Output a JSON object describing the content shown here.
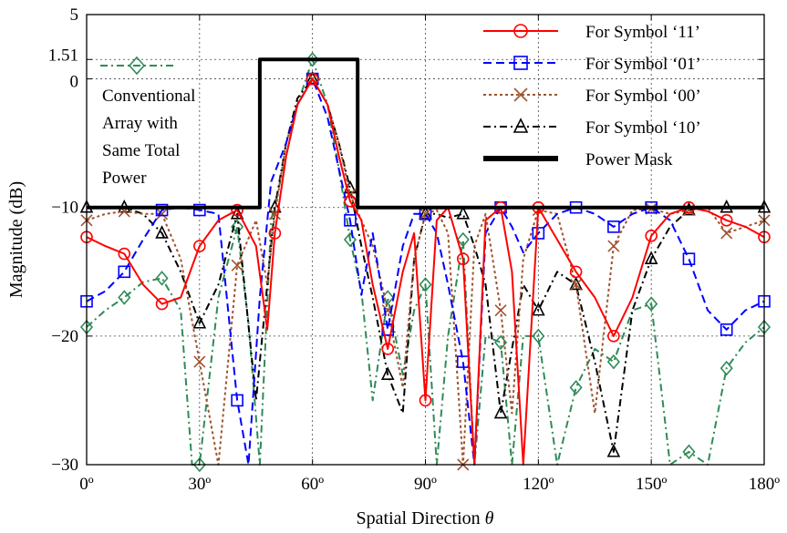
{
  "chart_data": {
    "type": "line",
    "xlabel": "Spatial Direction",
    "xlabel_symbol": "θ",
    "ylabel": "Magnitude (dB)",
    "xlim": [
      0,
      180
    ],
    "ylim": [
      -30,
      5
    ],
    "xticks": [
      0,
      30,
      60,
      90,
      120,
      150,
      180
    ],
    "xtick_labels": [
      "0º",
      "30º",
      "60º",
      "90º",
      "120º",
      "150º",
      "180º"
    ],
    "yticks": [
      5,
      1.51,
      0,
      -10,
      -20,
      -30
    ],
    "ytick_labels": [
      "5",
      "1.51",
      "0",
      "−10",
      "−20",
      "−30"
    ],
    "grid": "dotted at ticks",
    "legend_position": "top-right",
    "annotation": {
      "lines": [
        "Conventional",
        "Array with",
        "Same Total",
        "Power"
      ],
      "marker": "diamond",
      "color": "#2e8b57"
    },
    "series": [
      {
        "name": "For Symbol ‘11’",
        "color": "#ff0000",
        "dash": "solid",
        "marker": "circle",
        "x": [
          0,
          5,
          10,
          15,
          20,
          25,
          30,
          35,
          40,
          45,
          48,
          50,
          53,
          56,
          60,
          64,
          67,
          70,
          73,
          76,
          80,
          84,
          87,
          90,
          93,
          96,
          100,
          103,
          106,
          110,
          113,
          116,
          120,
          125,
          130,
          135,
          140,
          145,
          150,
          155,
          160,
          165,
          170,
          175,
          180
        ],
        "y": [
          -12.3,
          -13,
          -13.6,
          -16,
          -17.5,
          -17,
          -13,
          -11,
          -10.2,
          -13,
          -19.5,
          -12,
          -6,
          -2,
          0,
          -2,
          -6,
          -9.5,
          -11,
          -16,
          -21,
          -15,
          -12,
          -25,
          -11,
          -10,
          -14,
          -34,
          -11,
          -10,
          -15,
          -31,
          -10,
          -12.5,
          -15,
          -17,
          -20,
          -17,
          -12.2,
          -10.5,
          -10,
          -10.3,
          -11,
          -11.5,
          -12.3
        ]
      },
      {
        "name": "For Symbol ‘01’",
        "color": "#0000ff",
        "dash": "dash",
        "marker": "square",
        "x": [
          0,
          5,
          10,
          15,
          20,
          25,
          30,
          35,
          40,
          43,
          46,
          49,
          53,
          56,
          60,
          64,
          67,
          70,
          73,
          76,
          80,
          84,
          87,
          90,
          93,
          96,
          100,
          103,
          106,
          110,
          113,
          116,
          120,
          125,
          130,
          135,
          140,
          145,
          150,
          155,
          160,
          165,
          170,
          175,
          180
        ],
        "y": [
          -17.3,
          -16.5,
          -15,
          -12.5,
          -10.2,
          -10,
          -10.2,
          -10.5,
          -25,
          -31,
          -17,
          -8,
          -5,
          -2,
          0,
          -3,
          -7,
          -11,
          -16.8,
          -12,
          -19.5,
          -13,
          -10.5,
          -10.5,
          -12,
          -16,
          -22,
          -31,
          -12,
          -10,
          -11.5,
          -13.5,
          -12,
          -10.5,
          -10,
          -10.5,
          -11.5,
          -10.5,
          -10,
          -11,
          -14,
          -18,
          -19.5,
          -18,
          -17.3
        ]
      },
      {
        "name": "For Symbol ‘00’",
        "color": "#a0522d",
        "dash": "dot",
        "marker": "x",
        "x": [
          0,
          5,
          10,
          15,
          20,
          25,
          30,
          35,
          40,
          45,
          48,
          50,
          53,
          56,
          60,
          64,
          67,
          70,
          73,
          76,
          80,
          84,
          87,
          90,
          93,
          96,
          100,
          103,
          106,
          110,
          113,
          116,
          120,
          125,
          130,
          135,
          140,
          145,
          150,
          155,
          160,
          165,
          170,
          175,
          180
        ],
        "y": [
          -11,
          -10.5,
          -10.3,
          -10.5,
          -10.5,
          -14,
          -22,
          -30,
          -14.5,
          -11,
          -16,
          -10.5,
          -5,
          -2,
          0,
          -2,
          -5,
          -9,
          -11,
          -13,
          -18,
          -24,
          -14,
          -10.5,
          -10.2,
          -12,
          -31,
          -13,
          -10.5,
          -18,
          -26,
          -14,
          -10.2,
          -10.5,
          -16,
          -26,
          -13,
          -10.2,
          -10.1,
          -10.5,
          -10.2,
          -10,
          -12,
          -11.5,
          -11
        ]
      },
      {
        "name": "For Symbol ‘10’",
        "color": "#000000",
        "dash": "dashdot",
        "marker": "triangle",
        "x": [
          0,
          5,
          10,
          15,
          20,
          25,
          30,
          35,
          40,
          45,
          48,
          50,
          53,
          56,
          60,
          64,
          67,
          70,
          73,
          76,
          80,
          84,
          87,
          90,
          93,
          96,
          100,
          103,
          106,
          110,
          113,
          116,
          120,
          125,
          130,
          135,
          140,
          145,
          150,
          155,
          160,
          165,
          170,
          175,
          180
        ],
        "y": [
          -10,
          -10,
          -10,
          -10.5,
          -12,
          -15,
          -19,
          -16,
          -10.5,
          -25,
          -16,
          -10,
          -5,
          -1.5,
          0,
          -2,
          -5,
          -8.5,
          -13,
          -17,
          -23,
          -26,
          -14,
          -10.5,
          -10.5,
          -10.8,
          -10.5,
          -13,
          -16,
          -26,
          -21,
          -16,
          -18,
          -15,
          -16,
          -22,
          -29,
          -18,
          -14,
          -11.5,
          -10.2,
          -10,
          -10,
          -10,
          -10
        ]
      },
      {
        "name": "Power Mask",
        "color": "#000000",
        "dash": "solid",
        "marker": "none",
        "width": 4,
        "x": [
          0,
          46,
          46,
          72,
          72,
          180
        ],
        "y": [
          -10,
          -10,
          1.51,
          1.51,
          -10,
          -10
        ]
      },
      {
        "name": "Conventional Array with Same Total Power",
        "color": "#2e8b57",
        "dash": "dashdot",
        "marker": "diamond",
        "x": [
          0,
          5,
          10,
          15,
          20,
          25,
          28,
          30,
          35,
          40,
          43,
          46,
          49,
          53,
          56,
          60,
          64,
          67,
          70,
          73,
          76,
          80,
          84,
          87,
          90,
          93,
          96,
          100,
          103,
          106,
          110,
          113,
          116,
          120,
          125,
          130,
          135,
          140,
          145,
          150,
          155,
          160,
          165,
          170,
          175,
          180
        ],
        "y": [
          -19.3,
          -18,
          -17,
          -15.8,
          -15.5,
          -18,
          -30,
          -30,
          -17,
          -11.5,
          -19,
          -30,
          -11,
          -6,
          -2,
          1.51,
          -2,
          -7,
          -12.5,
          -16.5,
          -25,
          -17,
          -23,
          -18,
          -16,
          -30,
          -20,
          -12.5,
          -30,
          -20,
          -20.5,
          -30,
          -20,
          -20,
          -30,
          -24,
          -21,
          -22,
          -18,
          -17.5,
          -30,
          -29,
          -30,
          -22.5,
          -20.5,
          -19.3
        ]
      }
    ]
  }
}
